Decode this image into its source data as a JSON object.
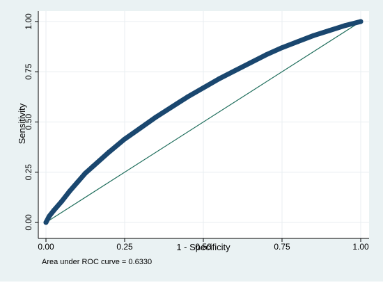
{
  "chart_data": {
    "type": "line",
    "xlabel": "1 - Specificity",
    "ylabel": "Sensitivity",
    "xlim": [
      0,
      1
    ],
    "ylim": [
      0,
      1
    ],
    "x_ticks": [
      "0.00",
      "0.25",
      "0.50",
      "0.75",
      "1.00"
    ],
    "y_ticks": [
      "0.00",
      "0.25",
      "0.50",
      "0.75",
      "1.00"
    ],
    "grid": true,
    "note": "Area under ROC curve = 0.6330",
    "colors": {
      "background": "#eaf2f3",
      "plot_area": "#ffffff",
      "grid": "#e8eef0",
      "roc_curve": "#1a476f",
      "reference_line": "#1f6e5c"
    },
    "series": [
      {
        "x": [
          0,
          0.01,
          0.025,
          0.05,
          0.075,
          0.1,
          0.125,
          0.15,
          0.2,
          0.25,
          0.3,
          0.35,
          0.4,
          0.45,
          0.5,
          0.55,
          0.6,
          0.65,
          0.7,
          0.75,
          0.8,
          0.85,
          0.9,
          0.95,
          1.0
        ],
        "y": [
          0,
          0.03,
          0.06,
          0.105,
          0.155,
          0.2,
          0.245,
          0.28,
          0.35,
          0.415,
          0.47,
          0.525,
          0.575,
          0.625,
          0.67,
          0.715,
          0.755,
          0.795,
          0.835,
          0.87,
          0.9,
          0.93,
          0.955,
          0.98,
          1.0
        ]
      },
      {
        "x": [
          0,
          1
        ],
        "y": [
          0,
          1
        ]
      }
    ]
  }
}
